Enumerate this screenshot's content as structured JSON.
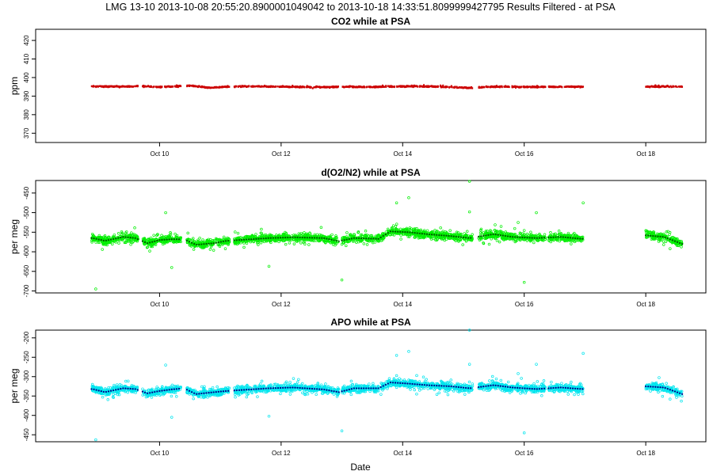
{
  "figure": {
    "super_title": "LMG   13-10    2013-10-08 20:55:20.8900001049042 to 2013-10-18 14:33:51.8099999427795    Results Filtered - at PSA",
    "xlabel": "Date"
  },
  "chart_data": [
    {
      "type": "scatter",
      "title": "CO2 while at PSA",
      "ylabel": "ppm",
      "xlabel": "",
      "ylim": [
        365,
        426
      ],
      "yticks": [
        370,
        380,
        390,
        400,
        410,
        420
      ],
      "x_ticks": [
        "Oct 10",
        "Oct 12",
        "Oct 14",
        "Oct 16",
        "Oct 18"
      ],
      "x_tick_days": [
        10,
        12,
        14,
        16,
        18
      ],
      "xlim_days": [
        8.0,
        18.95
      ],
      "grid": false,
      "series": [
        {
          "color": "#cc0000",
          "spread": 0.4,
          "segments": [
            [
              8.88,
              9.65
            ],
            [
              9.72,
              10.35
            ],
            [
              10.45,
              11.15
            ],
            [
              11.23,
              12.95
            ],
            [
              13.0,
              13.7
            ],
            [
              13.72,
              15.15
            ],
            [
              15.25,
              16.35
            ],
            [
              16.4,
              16.97
            ],
            [
              18.0,
              18.6
            ]
          ],
          "points": [
            [
              8.9,
              395.3
            ],
            [
              9.3,
              395.2
            ],
            [
              9.7,
              395.5
            ],
            [
              10.0,
              395.0
            ],
            [
              10.3,
              395.4
            ],
            [
              10.5,
              395.8
            ],
            [
              10.8,
              394.6
            ],
            [
              11.1,
              395.1
            ],
            [
              11.5,
              395.3
            ],
            [
              12.0,
              395.2
            ],
            [
              12.5,
              394.9
            ],
            [
              13.0,
              395.1
            ],
            [
              13.5,
              395.0
            ],
            [
              13.75,
              395.2
            ],
            [
              14.2,
              395.4
            ],
            [
              14.7,
              395.1
            ],
            [
              15.1,
              394.5
            ],
            [
              15.5,
              395.2
            ],
            [
              16.0,
              395.0
            ],
            [
              16.5,
              395.1
            ],
            [
              17.0,
              395.2
            ],
            [
              18.0,
              395.2
            ],
            [
              18.3,
              395.3
            ],
            [
              18.6,
              395.1
            ]
          ]
        }
      ]
    },
    {
      "type": "scatter",
      "title": "d(O2/N2) while at PSA",
      "ylabel": "per meg",
      "xlabel": "",
      "ylim": [
        -705,
        -418
      ],
      "yticks": [
        -700,
        -650,
        -600,
        -550,
        -500,
        -450
      ],
      "x_ticks": [
        "Oct 10",
        "Oct 12",
        "Oct 14",
        "Oct 16",
        "Oct 18"
      ],
      "x_tick_days": [
        10,
        12,
        14,
        16,
        18
      ],
      "xlim_days": [
        8.0,
        18.95
      ],
      "grid": false,
      "series": [
        {
          "color": "#00ee00",
          "spread": 14,
          "segments": [
            [
              8.88,
              9.65
            ],
            [
              9.72,
              10.35
            ],
            [
              10.45,
              11.15
            ],
            [
              11.23,
              12.95
            ],
            [
              13.0,
              13.7
            ],
            [
              13.72,
              15.15
            ],
            [
              15.25,
              16.35
            ],
            [
              16.4,
              16.97
            ],
            [
              18.0,
              18.6
            ]
          ],
          "points": [
            [
              8.9,
              -565
            ],
            [
              9.1,
              -572
            ],
            [
              9.4,
              -562
            ],
            [
              9.6,
              -565
            ],
            [
              9.8,
              -578
            ],
            [
              10.0,
              -570
            ],
            [
              10.2,
              -568
            ],
            [
              10.4,
              -568
            ],
            [
              10.6,
              -582
            ],
            [
              10.9,
              -578
            ],
            [
              11.1,
              -572
            ],
            [
              11.3,
              -570
            ],
            [
              11.8,
              -565
            ],
            [
              12.2,
              -563
            ],
            [
              12.7,
              -565
            ],
            [
              12.95,
              -573
            ],
            [
              13.2,
              -565
            ],
            [
              13.6,
              -567
            ],
            [
              13.8,
              -548
            ],
            [
              14.1,
              -550
            ],
            [
              14.4,
              -555
            ],
            [
              14.8,
              -560
            ],
            [
              15.1,
              -565
            ],
            [
              15.5,
              -555
            ],
            [
              15.8,
              -562
            ],
            [
              16.2,
              -565
            ],
            [
              16.6,
              -562
            ],
            [
              16.95,
              -567
            ],
            [
              18.0,
              -558
            ],
            [
              18.3,
              -562
            ],
            [
              18.6,
              -580
            ]
          ]
        }
      ],
      "outliers": [
        [
          8.95,
          -695
        ],
        [
          10.1,
          -500
        ],
        [
          10.2,
          -640
        ],
        [
          11.8,
          -637
        ],
        [
          13.0,
          -672
        ],
        [
          13.9,
          -475
        ],
        [
          14.1,
          -462
        ],
        [
          15.1,
          -420
        ],
        [
          15.1,
          -498
        ],
        [
          15.9,
          -525
        ],
        [
          16.0,
          -678
        ],
        [
          16.2,
          -500
        ],
        [
          16.97,
          -475
        ],
        [
          18.4,
          -592
        ]
      ]
    },
    {
      "type": "scatter",
      "title": "APO while at PSA",
      "ylabel": "per meg",
      "xlabel": "Date",
      "ylim": [
        -468,
        -180
      ],
      "yticks": [
        -450,
        -400,
        -350,
        -300,
        -250,
        -200
      ],
      "x_ticks": [
        "Oct 10",
        "Oct 12",
        "Oct 14",
        "Oct 16",
        "Oct 18"
      ],
      "x_tick_days": [
        10,
        12,
        14,
        16,
        18
      ],
      "xlim_days": [
        8.0,
        18.95
      ],
      "grid": false,
      "series": [
        {
          "color": "#00e5ee",
          "spread": 14,
          "segments": [
            [
              8.88,
              9.65
            ],
            [
              9.72,
              10.35
            ],
            [
              10.45,
              11.15
            ],
            [
              11.23,
              12.95
            ],
            [
              13.0,
              13.7
            ],
            [
              13.72,
              15.15
            ],
            [
              15.25,
              16.35
            ],
            [
              16.4,
              16.97
            ],
            [
              18.0,
              18.6
            ]
          ],
          "points": [
            [
              8.9,
              -332
            ],
            [
              9.1,
              -340
            ],
            [
              9.4,
              -330
            ],
            [
              9.6,
              -332
            ],
            [
              9.8,
              -343
            ],
            [
              10.0,
              -337
            ],
            [
              10.2,
              -333
            ],
            [
              10.4,
              -330
            ],
            [
              10.6,
              -345
            ],
            [
              10.9,
              -340
            ],
            [
              11.1,
              -337
            ],
            [
              11.3,
              -335
            ],
            [
              11.8,
              -330
            ],
            [
              12.2,
              -328
            ],
            [
              12.7,
              -333
            ],
            [
              12.95,
              -340
            ],
            [
              13.2,
              -330
            ],
            [
              13.6,
              -330
            ],
            [
              13.8,
              -315
            ],
            [
              14.1,
              -318
            ],
            [
              14.4,
              -322
            ],
            [
              14.8,
              -325
            ],
            [
              15.1,
              -330
            ],
            [
              15.5,
              -322
            ],
            [
              15.8,
              -328
            ],
            [
              16.2,
              -332
            ],
            [
              16.6,
              -328
            ],
            [
              16.95,
              -332
            ],
            [
              18.0,
              -325
            ],
            [
              18.3,
              -328
            ],
            [
              18.6,
              -345
            ]
          ]
        }
      ],
      "outliers": [
        [
          8.95,
          -463
        ],
        [
          10.1,
          -270
        ],
        [
          10.2,
          -405
        ],
        [
          11.8,
          -402
        ],
        [
          13.0,
          -440
        ],
        [
          13.9,
          -245
        ],
        [
          14.1,
          -235
        ],
        [
          15.1,
          -180
        ],
        [
          15.1,
          -268
        ],
        [
          15.9,
          -292
        ],
        [
          16.0,
          -445
        ],
        [
          16.2,
          -268
        ],
        [
          16.97,
          -240
        ],
        [
          18.4,
          -358
        ]
      ]
    }
  ]
}
